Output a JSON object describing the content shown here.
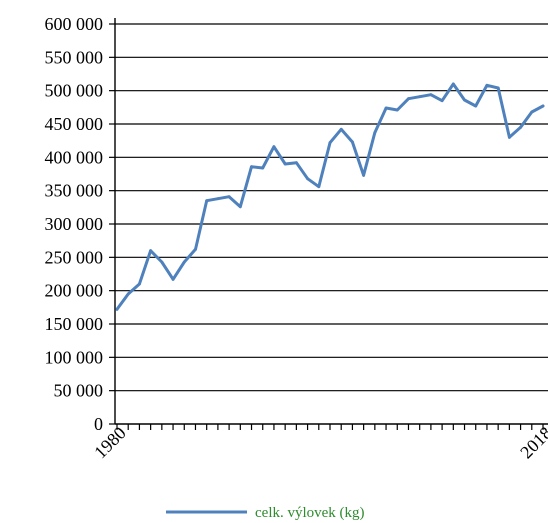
{
  "chart_data": {
    "type": "line",
    "title": "",
    "xlabel": "",
    "ylabel": "",
    "xlim": [
      1980,
      2018
    ],
    "ylim": [
      0,
      600000
    ],
    "grid": true,
    "legend_position": "bottom",
    "y_ticks": [
      {
        "value": 0,
        "label": "0"
      },
      {
        "value": 50000,
        "label": "50 000"
      },
      {
        "value": 100000,
        "label": "100 000"
      },
      {
        "value": 150000,
        "label": "150 000"
      },
      {
        "value": 200000,
        "label": "200 000"
      },
      {
        "value": 250000,
        "label": "250 000"
      },
      {
        "value": 300000,
        "label": "300 000"
      },
      {
        "value": 350000,
        "label": "350 000"
      },
      {
        "value": 400000,
        "label": "400 000"
      },
      {
        "value": 450000,
        "label": "450 000"
      },
      {
        "value": 500000,
        "label": "500 000"
      },
      {
        "value": 550000,
        "label": "550 000"
      },
      {
        "value": 600000,
        "label": "600 000"
      }
    ],
    "x_tick_labels": [
      {
        "value": 1980,
        "label": "1980"
      },
      {
        "value": 2018,
        "label": "2018"
      }
    ],
    "x": [
      1980,
      1981,
      1982,
      1983,
      1984,
      1985,
      1986,
      1987,
      1988,
      1989,
      1990,
      1991,
      1992,
      1993,
      1994,
      1995,
      1996,
      1997,
      1998,
      1999,
      2000,
      2001,
      2002,
      2003,
      2004,
      2005,
      2006,
      2007,
      2008,
      2009,
      2010,
      2011,
      2012,
      2013,
      2014,
      2015,
      2016,
      2017,
      2018
    ],
    "series": [
      {
        "name": "celk. výlovek (kg)",
        "color": "#4f81bd",
        "values": [
          172000,
          195000,
          210000,
          260000,
          243000,
          217000,
          243000,
          262000,
          335000,
          338000,
          341000,
          326000,
          386000,
          384000,
          416000,
          390000,
          392000,
          368000,
          356000,
          422000,
          442000,
          423000,
          373000,
          437000,
          474000,
          471000,
          488000,
          491000,
          494000,
          485000,
          510000,
          486000,
          477000,
          508000,
          504000,
          430000,
          445000,
          468000,
          477000
        ]
      }
    ]
  }
}
